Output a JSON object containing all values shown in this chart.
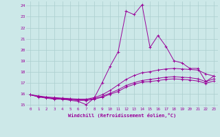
{
  "xlabel": "Windchill (Refroidissement éolien,°C)",
  "background_color": "#cce8e8",
  "grid_color": "#aacece",
  "line_color": "#990099",
  "xlim": [
    -0.5,
    23.5
  ],
  "ylim": [
    14.8,
    24.4
  ],
  "xticks": [
    0,
    1,
    2,
    3,
    4,
    5,
    6,
    7,
    8,
    9,
    10,
    11,
    12,
    13,
    14,
    15,
    16,
    17,
    18,
    19,
    20,
    21,
    22,
    23
  ],
  "yticks": [
    15,
    16,
    17,
    18,
    19,
    20,
    21,
    22,
    23,
    24
  ],
  "line1_y": [
    15.9,
    15.7,
    15.6,
    15.5,
    15.5,
    15.4,
    15.3,
    15.0,
    15.6,
    17.0,
    18.5,
    19.8,
    23.5,
    23.2,
    24.1,
    20.2,
    21.3,
    20.3,
    19.0,
    18.8,
    18.3,
    18.3,
    17.1,
    17.6
  ],
  "line2_y": [
    15.9,
    15.8,
    15.7,
    15.65,
    15.6,
    15.55,
    15.5,
    15.5,
    15.65,
    15.9,
    16.3,
    16.8,
    17.3,
    17.65,
    17.9,
    18.0,
    18.15,
    18.25,
    18.3,
    18.25,
    18.2,
    18.15,
    17.8,
    17.6
  ],
  "line3_y": [
    15.9,
    15.75,
    15.65,
    15.6,
    15.55,
    15.5,
    15.45,
    15.45,
    15.55,
    15.75,
    16.05,
    16.35,
    16.75,
    17.0,
    17.2,
    17.3,
    17.4,
    17.5,
    17.55,
    17.5,
    17.45,
    17.35,
    17.1,
    17.35
  ],
  "line4_y": [
    15.9,
    15.75,
    15.65,
    15.55,
    15.5,
    15.45,
    15.4,
    15.38,
    15.5,
    15.68,
    15.95,
    16.2,
    16.6,
    16.85,
    17.05,
    17.1,
    17.2,
    17.3,
    17.35,
    17.3,
    17.25,
    17.15,
    16.95,
    17.15
  ]
}
